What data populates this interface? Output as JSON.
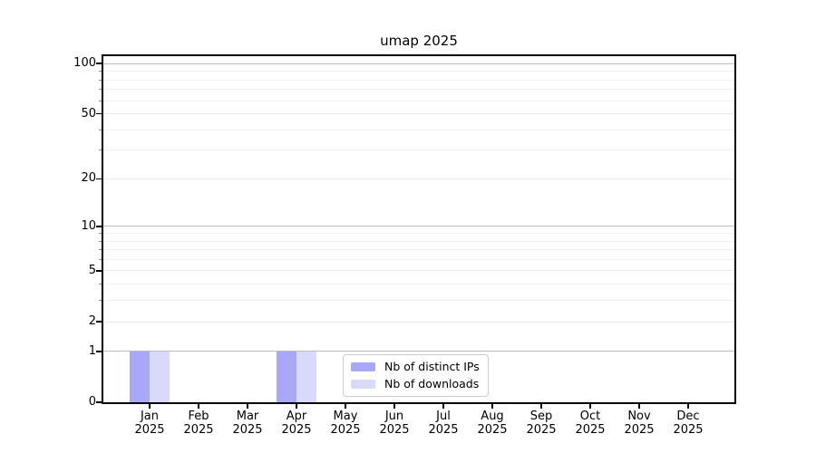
{
  "title": "umap 2025",
  "chart_data": {
    "type": "bar",
    "title": "umap 2025",
    "categories": [
      "Jan 2025",
      "Feb 2025",
      "Mar 2025",
      "Apr 2025",
      "May 2025",
      "Jun 2025",
      "Jul 2025",
      "Aug 2025",
      "Sep 2025",
      "Oct 2025",
      "Nov 2025",
      "Dec 2025"
    ],
    "series": [
      {
        "name": "Nb of distinct IPs",
        "color": "#a8a8f6",
        "values": [
          1,
          0,
          0,
          1,
          0,
          0,
          0,
          0,
          0,
          0,
          0,
          0
        ]
      },
      {
        "name": "Nb of downloads",
        "color": "#d9d9f9",
        "values": [
          1,
          0,
          0,
          1,
          0,
          0,
          0,
          0,
          0,
          0,
          0,
          0
        ]
      }
    ],
    "y_axis": {
      "scale": "log1p",
      "labeled_ticks": [
        0,
        1,
        2,
        5,
        10,
        20,
        50,
        100
      ],
      "decade_ticks": [
        1,
        10,
        100
      ],
      "minor_ticks": [
        3,
        4,
        6,
        7,
        8,
        9,
        30,
        40,
        60,
        70,
        80,
        90
      ],
      "range": [
        0,
        110
      ]
    },
    "x_axis": {
      "label_year_on_second_line": true
    },
    "grid": {
      "decade_color": "#bdbdbd",
      "major_color": "#e7e7e7",
      "minor_color": "#f0f0f0",
      "orientation": "horizontal"
    },
    "legend": {
      "position": "lower center",
      "items": [
        "Nb of distinct IPs",
        "Nb of downloads"
      ]
    },
    "colors": {
      "background": "#ffffff",
      "spine": "#000000"
    }
  }
}
